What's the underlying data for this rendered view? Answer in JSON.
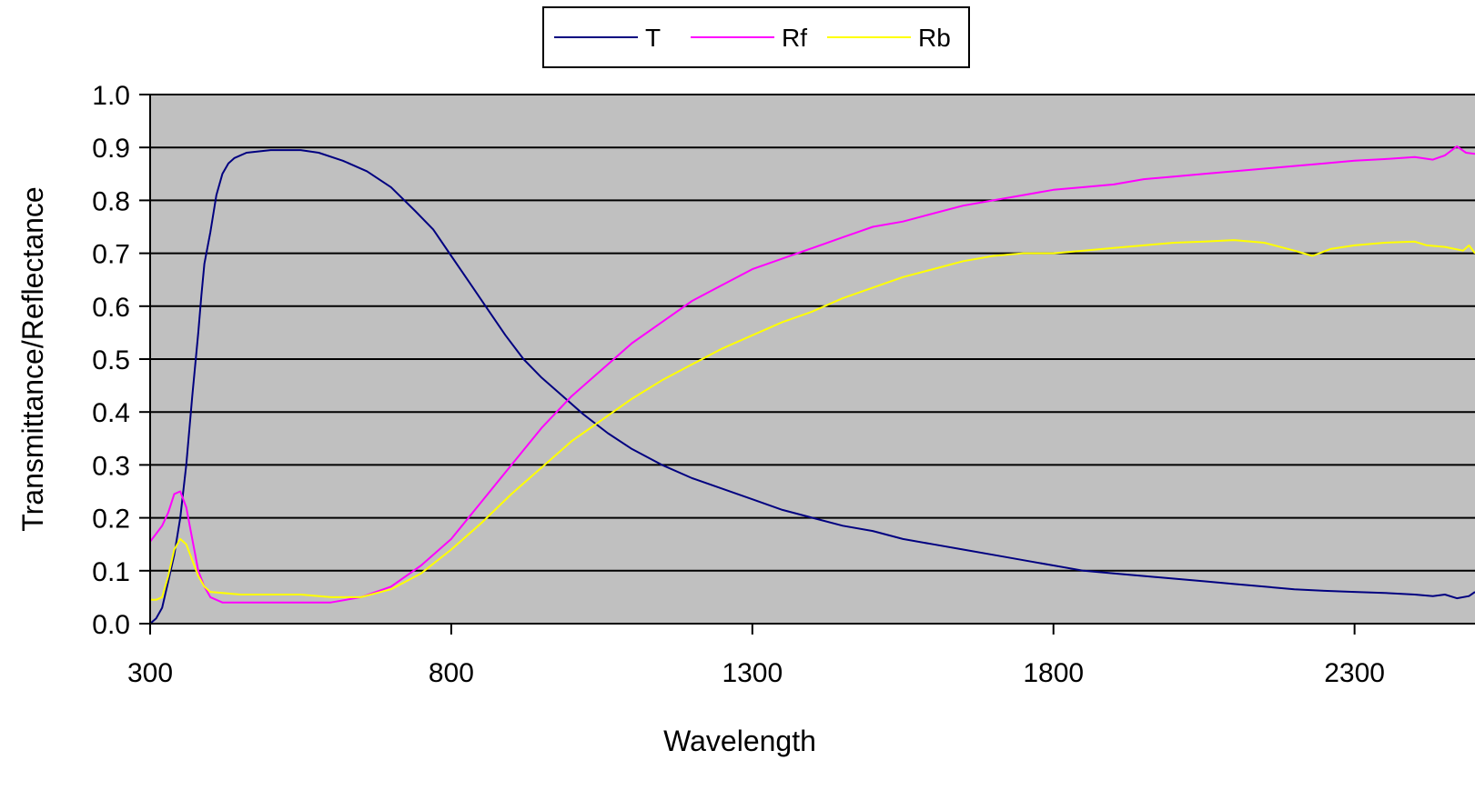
{
  "chart_data": {
    "type": "line",
    "title": "",
    "xlabel": "Wavelength",
    "ylabel": "Transmittance/Reflectance",
    "xlim": [
      300,
      2500
    ],
    "ylim": [
      0,
      1
    ],
    "xticks": [
      300,
      800,
      1300,
      1800,
      2300
    ],
    "xtick_labels": [
      "300",
      "800",
      "1300",
      "1800",
      "2300"
    ],
    "yticks": [
      0,
      0.1,
      0.2,
      0.3,
      0.4,
      0.5,
      0.6,
      0.7,
      0.8,
      0.9,
      1.0
    ],
    "ytick_labels": [
      "0.0",
      "0.1",
      "0.2",
      "0.3",
      "0.4",
      "0.5",
      "0.6",
      "0.7",
      "0.8",
      "0.9",
      "1.0"
    ],
    "grid": "horizontal",
    "plot_background": "#c0c0c0",
    "legend_position": "top-center",
    "series": [
      {
        "name": "T",
        "color": "#000080",
        "points": [
          [
            300,
            0.0
          ],
          [
            310,
            0.01
          ],
          [
            320,
            0.03
          ],
          [
            330,
            0.08
          ],
          [
            340,
            0.13
          ],
          [
            350,
            0.2
          ],
          [
            360,
            0.3
          ],
          [
            370,
            0.43
          ],
          [
            380,
            0.55
          ],
          [
            385,
            0.62
          ],
          [
            390,
            0.68
          ],
          [
            400,
            0.74
          ],
          [
            410,
            0.81
          ],
          [
            420,
            0.85
          ],
          [
            430,
            0.87
          ],
          [
            440,
            0.88
          ],
          [
            460,
            0.89
          ],
          [
            500,
            0.895
          ],
          [
            550,
            0.895
          ],
          [
            580,
            0.89
          ],
          [
            620,
            0.875
          ],
          [
            660,
            0.855
          ],
          [
            700,
            0.825
          ],
          [
            740,
            0.78
          ],
          [
            770,
            0.745
          ],
          [
            800,
            0.695
          ],
          [
            830,
            0.645
          ],
          [
            860,
            0.595
          ],
          [
            890,
            0.545
          ],
          [
            920,
            0.5
          ],
          [
            950,
            0.465
          ],
          [
            980,
            0.435
          ],
          [
            1020,
            0.395
          ],
          [
            1060,
            0.36
          ],
          [
            1100,
            0.33
          ],
          [
            1150,
            0.3
          ],
          [
            1200,
            0.275
          ],
          [
            1250,
            0.255
          ],
          [
            1300,
            0.235
          ],
          [
            1350,
            0.215
          ],
          [
            1400,
            0.2
          ],
          [
            1450,
            0.185
          ],
          [
            1500,
            0.175
          ],
          [
            1550,
            0.16
          ],
          [
            1600,
            0.15
          ],
          [
            1650,
            0.14
          ],
          [
            1700,
            0.13
          ],
          [
            1750,
            0.12
          ],
          [
            1800,
            0.11
          ],
          [
            1850,
            0.1
          ],
          [
            1900,
            0.095
          ],
          [
            1950,
            0.09
          ],
          [
            2000,
            0.085
          ],
          [
            2050,
            0.08
          ],
          [
            2100,
            0.075
          ],
          [
            2150,
            0.07
          ],
          [
            2200,
            0.065
          ],
          [
            2250,
            0.062
          ],
          [
            2300,
            0.06
          ],
          [
            2350,
            0.058
          ],
          [
            2400,
            0.055
          ],
          [
            2430,
            0.052
          ],
          [
            2450,
            0.055
          ],
          [
            2470,
            0.048
          ],
          [
            2490,
            0.052
          ],
          [
            2500,
            0.06
          ]
        ]
      },
      {
        "name": "Rf",
        "color": "#ff00ff",
        "points": [
          [
            300,
            0.155
          ],
          [
            310,
            0.17
          ],
          [
            320,
            0.185
          ],
          [
            330,
            0.21
          ],
          [
            340,
            0.245
          ],
          [
            350,
            0.25
          ],
          [
            360,
            0.22
          ],
          [
            370,
            0.16
          ],
          [
            380,
            0.1
          ],
          [
            390,
            0.07
          ],
          [
            400,
            0.05
          ],
          [
            420,
            0.04
          ],
          [
            450,
            0.04
          ],
          [
            500,
            0.04
          ],
          [
            550,
            0.04
          ],
          [
            600,
            0.04
          ],
          [
            650,
            0.05
          ],
          [
            700,
            0.07
          ],
          [
            750,
            0.11
          ],
          [
            800,
            0.16
          ],
          [
            850,
            0.23
          ],
          [
            900,
            0.3
          ],
          [
            950,
            0.37
          ],
          [
            1000,
            0.43
          ],
          [
            1050,
            0.48
          ],
          [
            1100,
            0.53
          ],
          [
            1150,
            0.57
          ],
          [
            1200,
            0.61
          ],
          [
            1250,
            0.64
          ],
          [
            1300,
            0.67
          ],
          [
            1350,
            0.69
          ],
          [
            1400,
            0.71
          ],
          [
            1450,
            0.73
          ],
          [
            1500,
            0.75
          ],
          [
            1550,
            0.76
          ],
          [
            1600,
            0.775
          ],
          [
            1650,
            0.79
          ],
          [
            1700,
            0.8
          ],
          [
            1750,
            0.81
          ],
          [
            1800,
            0.82
          ],
          [
            1850,
            0.825
          ],
          [
            1900,
            0.83
          ],
          [
            1950,
            0.84
          ],
          [
            2000,
            0.845
          ],
          [
            2050,
            0.85
          ],
          [
            2100,
            0.855
          ],
          [
            2150,
            0.86
          ],
          [
            2200,
            0.865
          ],
          [
            2250,
            0.87
          ],
          [
            2300,
            0.875
          ],
          [
            2350,
            0.878
          ],
          [
            2400,
            0.882
          ],
          [
            2430,
            0.877
          ],
          [
            2450,
            0.885
          ],
          [
            2470,
            0.902
          ],
          [
            2485,
            0.89
          ],
          [
            2500,
            0.888
          ]
        ]
      },
      {
        "name": "Rb",
        "color": "#ffff00",
        "points": [
          [
            300,
            0.045
          ],
          [
            310,
            0.045
          ],
          [
            320,
            0.05
          ],
          [
            330,
            0.09
          ],
          [
            340,
            0.14
          ],
          [
            350,
            0.16
          ],
          [
            360,
            0.15
          ],
          [
            370,
            0.12
          ],
          [
            380,
            0.09
          ],
          [
            390,
            0.07
          ],
          [
            400,
            0.06
          ],
          [
            450,
            0.055
          ],
          [
            500,
            0.055
          ],
          [
            550,
            0.055
          ],
          [
            600,
            0.05
          ],
          [
            650,
            0.05
          ],
          [
            700,
            0.065
          ],
          [
            750,
            0.095
          ],
          [
            800,
            0.14
          ],
          [
            850,
            0.19
          ],
          [
            900,
            0.245
          ],
          [
            950,
            0.295
          ],
          [
            1000,
            0.345
          ],
          [
            1050,
            0.385
          ],
          [
            1100,
            0.425
          ],
          [
            1150,
            0.46
          ],
          [
            1200,
            0.49
          ],
          [
            1250,
            0.52
          ],
          [
            1300,
            0.545
          ],
          [
            1350,
            0.57
          ],
          [
            1400,
            0.59
          ],
          [
            1450,
            0.615
          ],
          [
            1500,
            0.635
          ],
          [
            1550,
            0.655
          ],
          [
            1600,
            0.67
          ],
          [
            1650,
            0.685
          ],
          [
            1700,
            0.695
          ],
          [
            1750,
            0.7
          ],
          [
            1800,
            0.7
          ],
          [
            1850,
            0.705
          ],
          [
            1900,
            0.71
          ],
          [
            1950,
            0.715
          ],
          [
            2000,
            0.72
          ],
          [
            2050,
            0.722
          ],
          [
            2100,
            0.725
          ],
          [
            2150,
            0.72
          ],
          [
            2200,
            0.705
          ],
          [
            2230,
            0.695
          ],
          [
            2260,
            0.708
          ],
          [
            2300,
            0.715
          ],
          [
            2350,
            0.72
          ],
          [
            2400,
            0.722
          ],
          [
            2420,
            0.715
          ],
          [
            2450,
            0.712
          ],
          [
            2480,
            0.705
          ],
          [
            2490,
            0.715
          ],
          [
            2500,
            0.7
          ]
        ]
      }
    ]
  }
}
